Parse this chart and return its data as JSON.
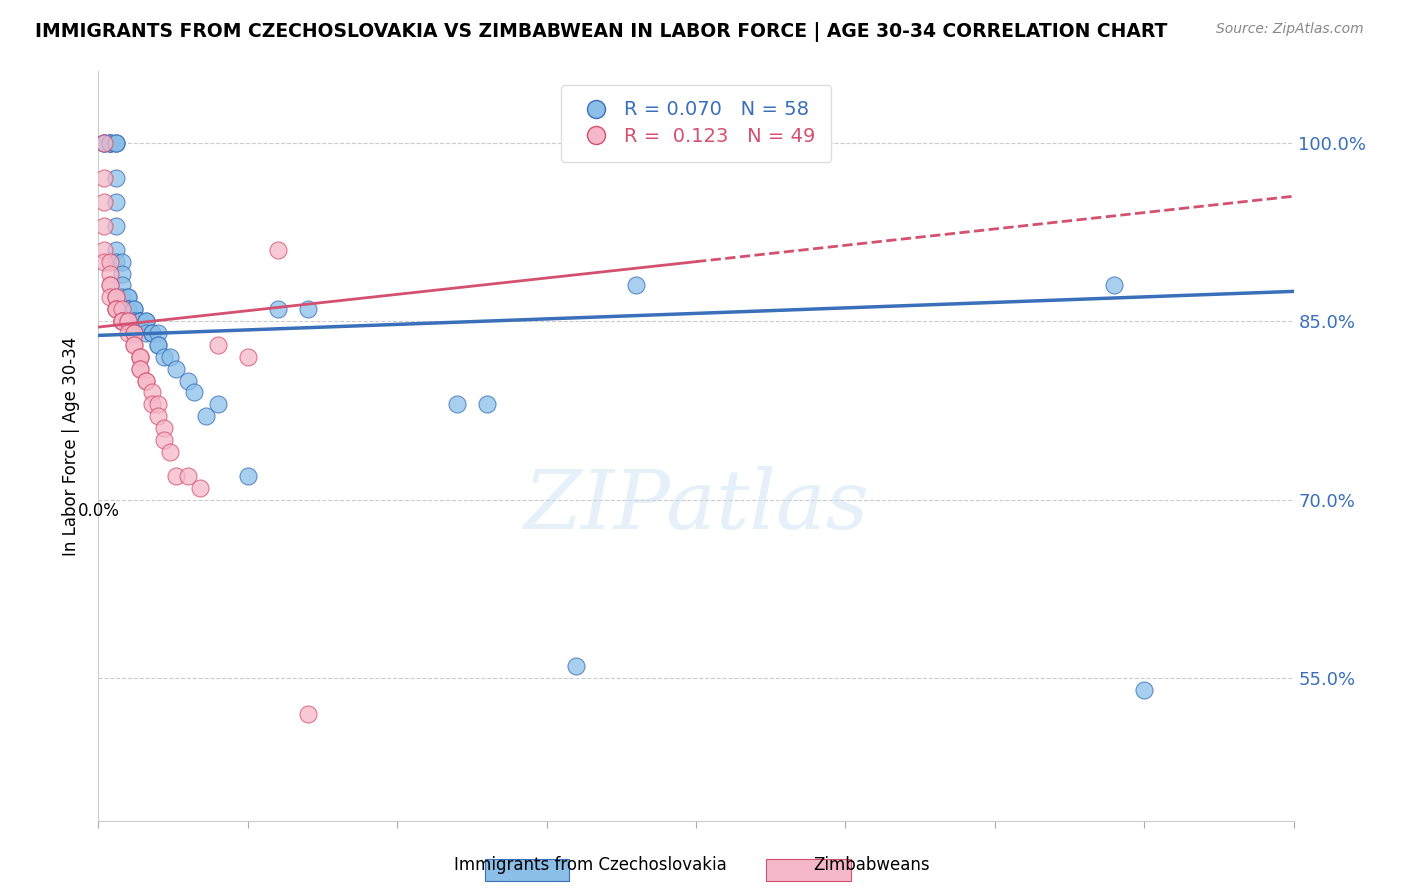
{
  "title": "IMMIGRANTS FROM CZECHOSLOVAKIA VS ZIMBABWEAN IN LABOR FORCE | AGE 30-34 CORRELATION CHART",
  "source": "Source: ZipAtlas.com",
  "ylabel": "In Labor Force | Age 30-34",
  "xlim": [
    0.0,
    0.2
  ],
  "ylim": [
    0.43,
    1.06
  ],
  "blue_R": 0.07,
  "blue_N": 58,
  "pink_R": 0.123,
  "pink_N": 49,
  "blue_color": "#8bbfe8",
  "pink_color": "#f5b8c8",
  "blue_line_color": "#3a6fba",
  "pink_line_color": "#d45070",
  "legend_label_blue": "Immigrants from Czechoslovakia",
  "legend_label_pink": "Zimbabweans",
  "watermark": "ZIPatlas",
  "ytick_vals": [
    0.55,
    0.7,
    0.85,
    1.0
  ],
  "ytick_labels": [
    "55.0%",
    "70.0%",
    "85.0%",
    "100.0%"
  ],
  "blue_points_x": [
    0.001,
    0.001,
    0.001,
    0.002,
    0.002,
    0.002,
    0.002,
    0.003,
    0.003,
    0.003,
    0.003,
    0.003,
    0.003,
    0.003,
    0.003,
    0.004,
    0.004,
    0.004,
    0.004,
    0.005,
    0.005,
    0.005,
    0.005,
    0.005,
    0.006,
    0.006,
    0.006,
    0.006,
    0.007,
    0.007,
    0.007,
    0.007,
    0.007,
    0.007,
    0.008,
    0.008,
    0.008,
    0.009,
    0.009,
    0.01,
    0.01,
    0.01,
    0.011,
    0.012,
    0.013,
    0.015,
    0.016,
    0.018,
    0.02,
    0.025,
    0.03,
    0.035,
    0.06,
    0.065,
    0.08,
    0.09,
    0.17,
    0.175
  ],
  "blue_points_y": [
    1.0,
    1.0,
    1.0,
    1.0,
    1.0,
    1.0,
    1.0,
    1.0,
    1.0,
    1.0,
    0.97,
    0.95,
    0.93,
    0.91,
    0.9,
    0.9,
    0.89,
    0.88,
    0.87,
    0.87,
    0.87,
    0.86,
    0.86,
    0.86,
    0.86,
    0.86,
    0.85,
    0.85,
    0.85,
    0.85,
    0.85,
    0.85,
    0.85,
    0.85,
    0.85,
    0.85,
    0.84,
    0.84,
    0.84,
    0.84,
    0.83,
    0.83,
    0.82,
    0.82,
    0.81,
    0.8,
    0.79,
    0.77,
    0.78,
    0.72,
    0.86,
    0.86,
    0.78,
    0.78,
    0.56,
    0.88,
    0.88,
    0.54
  ],
  "pink_points_x": [
    0.001,
    0.001,
    0.001,
    0.001,
    0.001,
    0.001,
    0.002,
    0.002,
    0.002,
    0.002,
    0.002,
    0.003,
    0.003,
    0.003,
    0.003,
    0.003,
    0.004,
    0.004,
    0.004,
    0.004,
    0.004,
    0.005,
    0.005,
    0.005,
    0.006,
    0.006,
    0.006,
    0.006,
    0.007,
    0.007,
    0.007,
    0.007,
    0.007,
    0.008,
    0.008,
    0.009,
    0.009,
    0.01,
    0.01,
    0.011,
    0.011,
    0.012,
    0.013,
    0.015,
    0.017,
    0.02,
    0.025,
    0.03,
    0.035
  ],
  "pink_points_y": [
    1.0,
    0.97,
    0.95,
    0.93,
    0.91,
    0.9,
    0.9,
    0.89,
    0.88,
    0.88,
    0.87,
    0.87,
    0.87,
    0.86,
    0.86,
    0.86,
    0.86,
    0.85,
    0.85,
    0.85,
    0.85,
    0.85,
    0.85,
    0.84,
    0.84,
    0.84,
    0.83,
    0.83,
    0.82,
    0.82,
    0.82,
    0.81,
    0.81,
    0.8,
    0.8,
    0.79,
    0.78,
    0.78,
    0.77,
    0.76,
    0.75,
    0.74,
    0.72,
    0.72,
    0.71,
    0.83,
    0.82,
    0.91,
    0.52
  ]
}
